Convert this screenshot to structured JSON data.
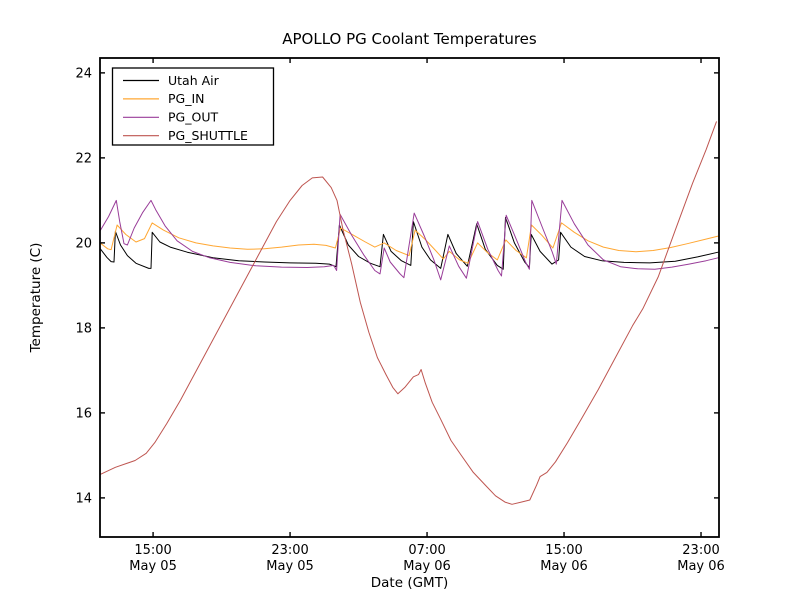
{
  "window": {
    "kind": "matplotlib-figure",
    "background": "#ffffff"
  },
  "chart_data": {
    "type": "line",
    "title": "APOLLO PG Coolant Temperatures",
    "xlabel": "Date (GMT)",
    "ylabel": "Temperature (C)",
    "grid": false,
    "legend_position": "upper left",
    "legend_entries": [
      "Utah Air",
      "PG_IN",
      "PG_OUT",
      "PG_SHUTTLE"
    ],
    "x_axis": {
      "unit": "hours (0 = ~12:00 May 05 GMT)",
      "xlim": [
        -0.1,
        36.05
      ],
      "ticks": [
        {
          "t": 3,
          "time": "15:00",
          "date": "May 05"
        },
        {
          "t": 11,
          "time": "23:00",
          "date": "May 05"
        },
        {
          "t": 19,
          "time": "07:00",
          "date": "May 06"
        },
        {
          "t": 27,
          "time": "15:00",
          "date": "May 06"
        },
        {
          "t": 35,
          "time": "23:00",
          "date": "May 06"
        }
      ]
    },
    "y_axis": {
      "ylim": [
        13.08,
        24.35
      ],
      "ticks": [
        14,
        16,
        18,
        20,
        22,
        24
      ]
    },
    "series": [
      {
        "name": "Utah Air",
        "color": "#000000",
        "points": [
          [
            -0.1,
            19.87
          ],
          [
            0.3,
            19.66
          ],
          [
            0.55,
            19.56
          ],
          [
            0.72,
            19.55
          ],
          [
            0.8,
            20.27
          ],
          [
            1.1,
            19.95
          ],
          [
            1.5,
            19.7
          ],
          [
            2.0,
            19.52
          ],
          [
            2.75,
            19.4
          ],
          [
            2.88,
            19.4
          ],
          [
            2.95,
            20.25
          ],
          [
            3.4,
            20.02
          ],
          [
            4.0,
            19.9
          ],
          [
            5.0,
            19.78
          ],
          [
            6.5,
            19.65
          ],
          [
            8.0,
            19.58
          ],
          [
            9.5,
            19.55
          ],
          [
            11.0,
            19.53
          ],
          [
            12.5,
            19.52
          ],
          [
            13.3,
            19.5
          ],
          [
            13.68,
            19.44
          ],
          [
            13.88,
            20.42
          ],
          [
            14.4,
            19.95
          ],
          [
            15.0,
            19.68
          ],
          [
            15.7,
            19.52
          ],
          [
            16.25,
            19.44
          ],
          [
            16.45,
            20.2
          ],
          [
            16.9,
            19.8
          ],
          [
            17.5,
            19.58
          ],
          [
            18.05,
            19.47
          ],
          [
            18.2,
            20.5
          ],
          [
            18.7,
            19.9
          ],
          [
            19.2,
            19.6
          ],
          [
            19.8,
            19.4
          ],
          [
            20.22,
            20.2
          ],
          [
            20.7,
            19.75
          ],
          [
            21.35,
            19.45
          ],
          [
            21.9,
            20.45
          ],
          [
            22.4,
            19.85
          ],
          [
            23.1,
            19.47
          ],
          [
            23.45,
            19.38
          ],
          [
            23.58,
            20.6
          ],
          [
            24.1,
            20.0
          ],
          [
            24.7,
            19.55
          ],
          [
            24.98,
            19.42
          ],
          [
            25.08,
            20.2
          ],
          [
            25.6,
            19.8
          ],
          [
            26.3,
            19.5
          ],
          [
            26.68,
            19.6
          ],
          [
            26.8,
            20.25
          ],
          [
            27.4,
            19.9
          ],
          [
            28.2,
            19.68
          ],
          [
            29.2,
            19.58
          ],
          [
            30.5,
            19.54
          ],
          [
            32.0,
            19.53
          ],
          [
            33.5,
            19.57
          ],
          [
            34.8,
            19.67
          ],
          [
            36.0,
            19.78
          ]
        ]
      },
      {
        "name": "PG_IN",
        "color": "#ffa733",
        "points": [
          [
            -0.1,
            20.0
          ],
          [
            0.35,
            19.86
          ],
          [
            0.55,
            19.84
          ],
          [
            0.9,
            20.42
          ],
          [
            1.4,
            20.2
          ],
          [
            2.0,
            20.02
          ],
          [
            2.5,
            20.1
          ],
          [
            2.95,
            20.47
          ],
          [
            3.6,
            20.3
          ],
          [
            4.5,
            20.12
          ],
          [
            5.5,
            20.0
          ],
          [
            6.5,
            19.93
          ],
          [
            7.5,
            19.88
          ],
          [
            8.5,
            19.85
          ],
          [
            9.5,
            19.86
          ],
          [
            10.5,
            19.9
          ],
          [
            11.5,
            19.95
          ],
          [
            12.4,
            19.97
          ],
          [
            13.1,
            19.94
          ],
          [
            13.65,
            19.88
          ],
          [
            13.95,
            20.35
          ],
          [
            14.7,
            20.18
          ],
          [
            15.4,
            20.02
          ],
          [
            15.95,
            19.9
          ],
          [
            16.5,
            20.0
          ],
          [
            17.2,
            19.82
          ],
          [
            17.95,
            19.7
          ],
          [
            18.3,
            20.3
          ],
          [
            18.9,
            20.08
          ],
          [
            19.5,
            19.82
          ],
          [
            19.95,
            19.62
          ],
          [
            20.3,
            19.8
          ],
          [
            20.9,
            19.6
          ],
          [
            21.4,
            19.52
          ],
          [
            21.95,
            20.0
          ],
          [
            22.5,
            19.78
          ],
          [
            23.1,
            19.6
          ],
          [
            23.6,
            20.07
          ],
          [
            24.2,
            19.82
          ],
          [
            24.8,
            19.65
          ],
          [
            25.1,
            20.42
          ],
          [
            25.7,
            20.18
          ],
          [
            26.35,
            19.88
          ],
          [
            26.85,
            20.47
          ],
          [
            27.6,
            20.25
          ],
          [
            28.4,
            20.05
          ],
          [
            29.3,
            19.9
          ],
          [
            30.2,
            19.82
          ],
          [
            31.2,
            19.79
          ],
          [
            32.2,
            19.82
          ],
          [
            33.2,
            19.89
          ],
          [
            34.2,
            19.98
          ],
          [
            35.2,
            20.08
          ],
          [
            36.0,
            20.16
          ]
        ]
      },
      {
        "name": "PG_OUT",
        "color": "#993d99",
        "points": [
          [
            -0.1,
            20.28
          ],
          [
            0.4,
            20.62
          ],
          [
            0.85,
            21.0
          ],
          [
            1.05,
            20.5
          ],
          [
            1.3,
            19.98
          ],
          [
            1.5,
            19.95
          ],
          [
            1.9,
            20.35
          ],
          [
            2.4,
            20.72
          ],
          [
            2.88,
            21.0
          ],
          [
            3.15,
            20.78
          ],
          [
            3.7,
            20.4
          ],
          [
            4.4,
            20.05
          ],
          [
            5.3,
            19.8
          ],
          [
            6.3,
            19.65
          ],
          [
            7.5,
            19.54
          ],
          [
            9.0,
            19.46
          ],
          [
            10.5,
            19.43
          ],
          [
            12.0,
            19.42
          ],
          [
            13.0,
            19.44
          ],
          [
            13.55,
            19.47
          ],
          [
            13.72,
            19.35
          ],
          [
            13.92,
            20.67
          ],
          [
            14.6,
            20.18
          ],
          [
            15.3,
            19.72
          ],
          [
            15.95,
            19.35
          ],
          [
            16.25,
            19.27
          ],
          [
            16.5,
            19.88
          ],
          [
            16.85,
            19.55
          ],
          [
            17.4,
            19.28
          ],
          [
            17.65,
            19.18
          ],
          [
            18.25,
            20.7
          ],
          [
            18.85,
            20.15
          ],
          [
            19.4,
            19.6
          ],
          [
            19.8,
            19.13
          ],
          [
            20.3,
            19.93
          ],
          [
            20.85,
            19.45
          ],
          [
            21.3,
            19.17
          ],
          [
            21.95,
            20.5
          ],
          [
            22.55,
            19.85
          ],
          [
            23.15,
            19.35
          ],
          [
            23.35,
            19.22
          ],
          [
            23.62,
            20.65
          ],
          [
            24.25,
            20.05
          ],
          [
            24.75,
            19.55
          ],
          [
            24.98,
            19.38
          ],
          [
            25.12,
            21.0
          ],
          [
            25.75,
            20.35
          ],
          [
            26.3,
            19.8
          ],
          [
            26.55,
            19.5
          ],
          [
            26.88,
            21.0
          ],
          [
            27.6,
            20.45
          ],
          [
            28.4,
            19.95
          ],
          [
            29.3,
            19.6
          ],
          [
            30.3,
            19.44
          ],
          [
            31.3,
            19.39
          ],
          [
            32.3,
            19.38
          ],
          [
            33.3,
            19.43
          ],
          [
            34.3,
            19.5
          ],
          [
            35.3,
            19.58
          ],
          [
            36.0,
            19.65
          ]
        ]
      },
      {
        "name": "PG_SHUTTLE",
        "color": "#be5550",
        "points": [
          [
            -0.1,
            14.55
          ],
          [
            0.8,
            14.72
          ],
          [
            1.95,
            14.88
          ],
          [
            2.6,
            15.05
          ],
          [
            3.1,
            15.3
          ],
          [
            3.8,
            15.75
          ],
          [
            4.6,
            16.3
          ],
          [
            5.4,
            16.9
          ],
          [
            6.2,
            17.5
          ],
          [
            7.0,
            18.1
          ],
          [
            7.8,
            18.7
          ],
          [
            8.6,
            19.3
          ],
          [
            9.4,
            19.9
          ],
          [
            10.2,
            20.5
          ],
          [
            11.0,
            21.0
          ],
          [
            11.7,
            21.35
          ],
          [
            12.3,
            21.53
          ],
          [
            12.9,
            21.55
          ],
          [
            13.4,
            21.3
          ],
          [
            13.74,
            21.0
          ],
          [
            14.1,
            20.3
          ],
          [
            14.6,
            19.5
          ],
          [
            15.1,
            18.6
          ],
          [
            15.6,
            17.9
          ],
          [
            16.1,
            17.3
          ],
          [
            16.6,
            16.9
          ],
          [
            17.0,
            16.6
          ],
          [
            17.3,
            16.45
          ],
          [
            17.7,
            16.6
          ],
          [
            18.2,
            16.85
          ],
          [
            18.5,
            16.9
          ],
          [
            18.65,
            17.02
          ],
          [
            18.9,
            16.7
          ],
          [
            19.3,
            16.25
          ],
          [
            19.8,
            15.85
          ],
          [
            20.4,
            15.35
          ],
          [
            21.0,
            15.0
          ],
          [
            21.7,
            14.6
          ],
          [
            22.4,
            14.3
          ],
          [
            23.0,
            14.05
          ],
          [
            23.55,
            13.9
          ],
          [
            23.96,
            13.85
          ],
          [
            24.5,
            13.9
          ],
          [
            25.0,
            13.95
          ],
          [
            25.4,
            14.3
          ],
          [
            25.6,
            14.5
          ],
          [
            26.0,
            14.6
          ],
          [
            26.5,
            14.85
          ],
          [
            27.2,
            15.3
          ],
          [
            28.0,
            15.85
          ],
          [
            29.0,
            16.55
          ],
          [
            30.0,
            17.3
          ],
          [
            31.0,
            18.05
          ],
          [
            31.6,
            18.45
          ],
          [
            32.5,
            19.2
          ],
          [
            33.5,
            20.3
          ],
          [
            34.5,
            21.4
          ],
          [
            35.3,
            22.2
          ],
          [
            35.9,
            22.85
          ]
        ]
      }
    ]
  }
}
